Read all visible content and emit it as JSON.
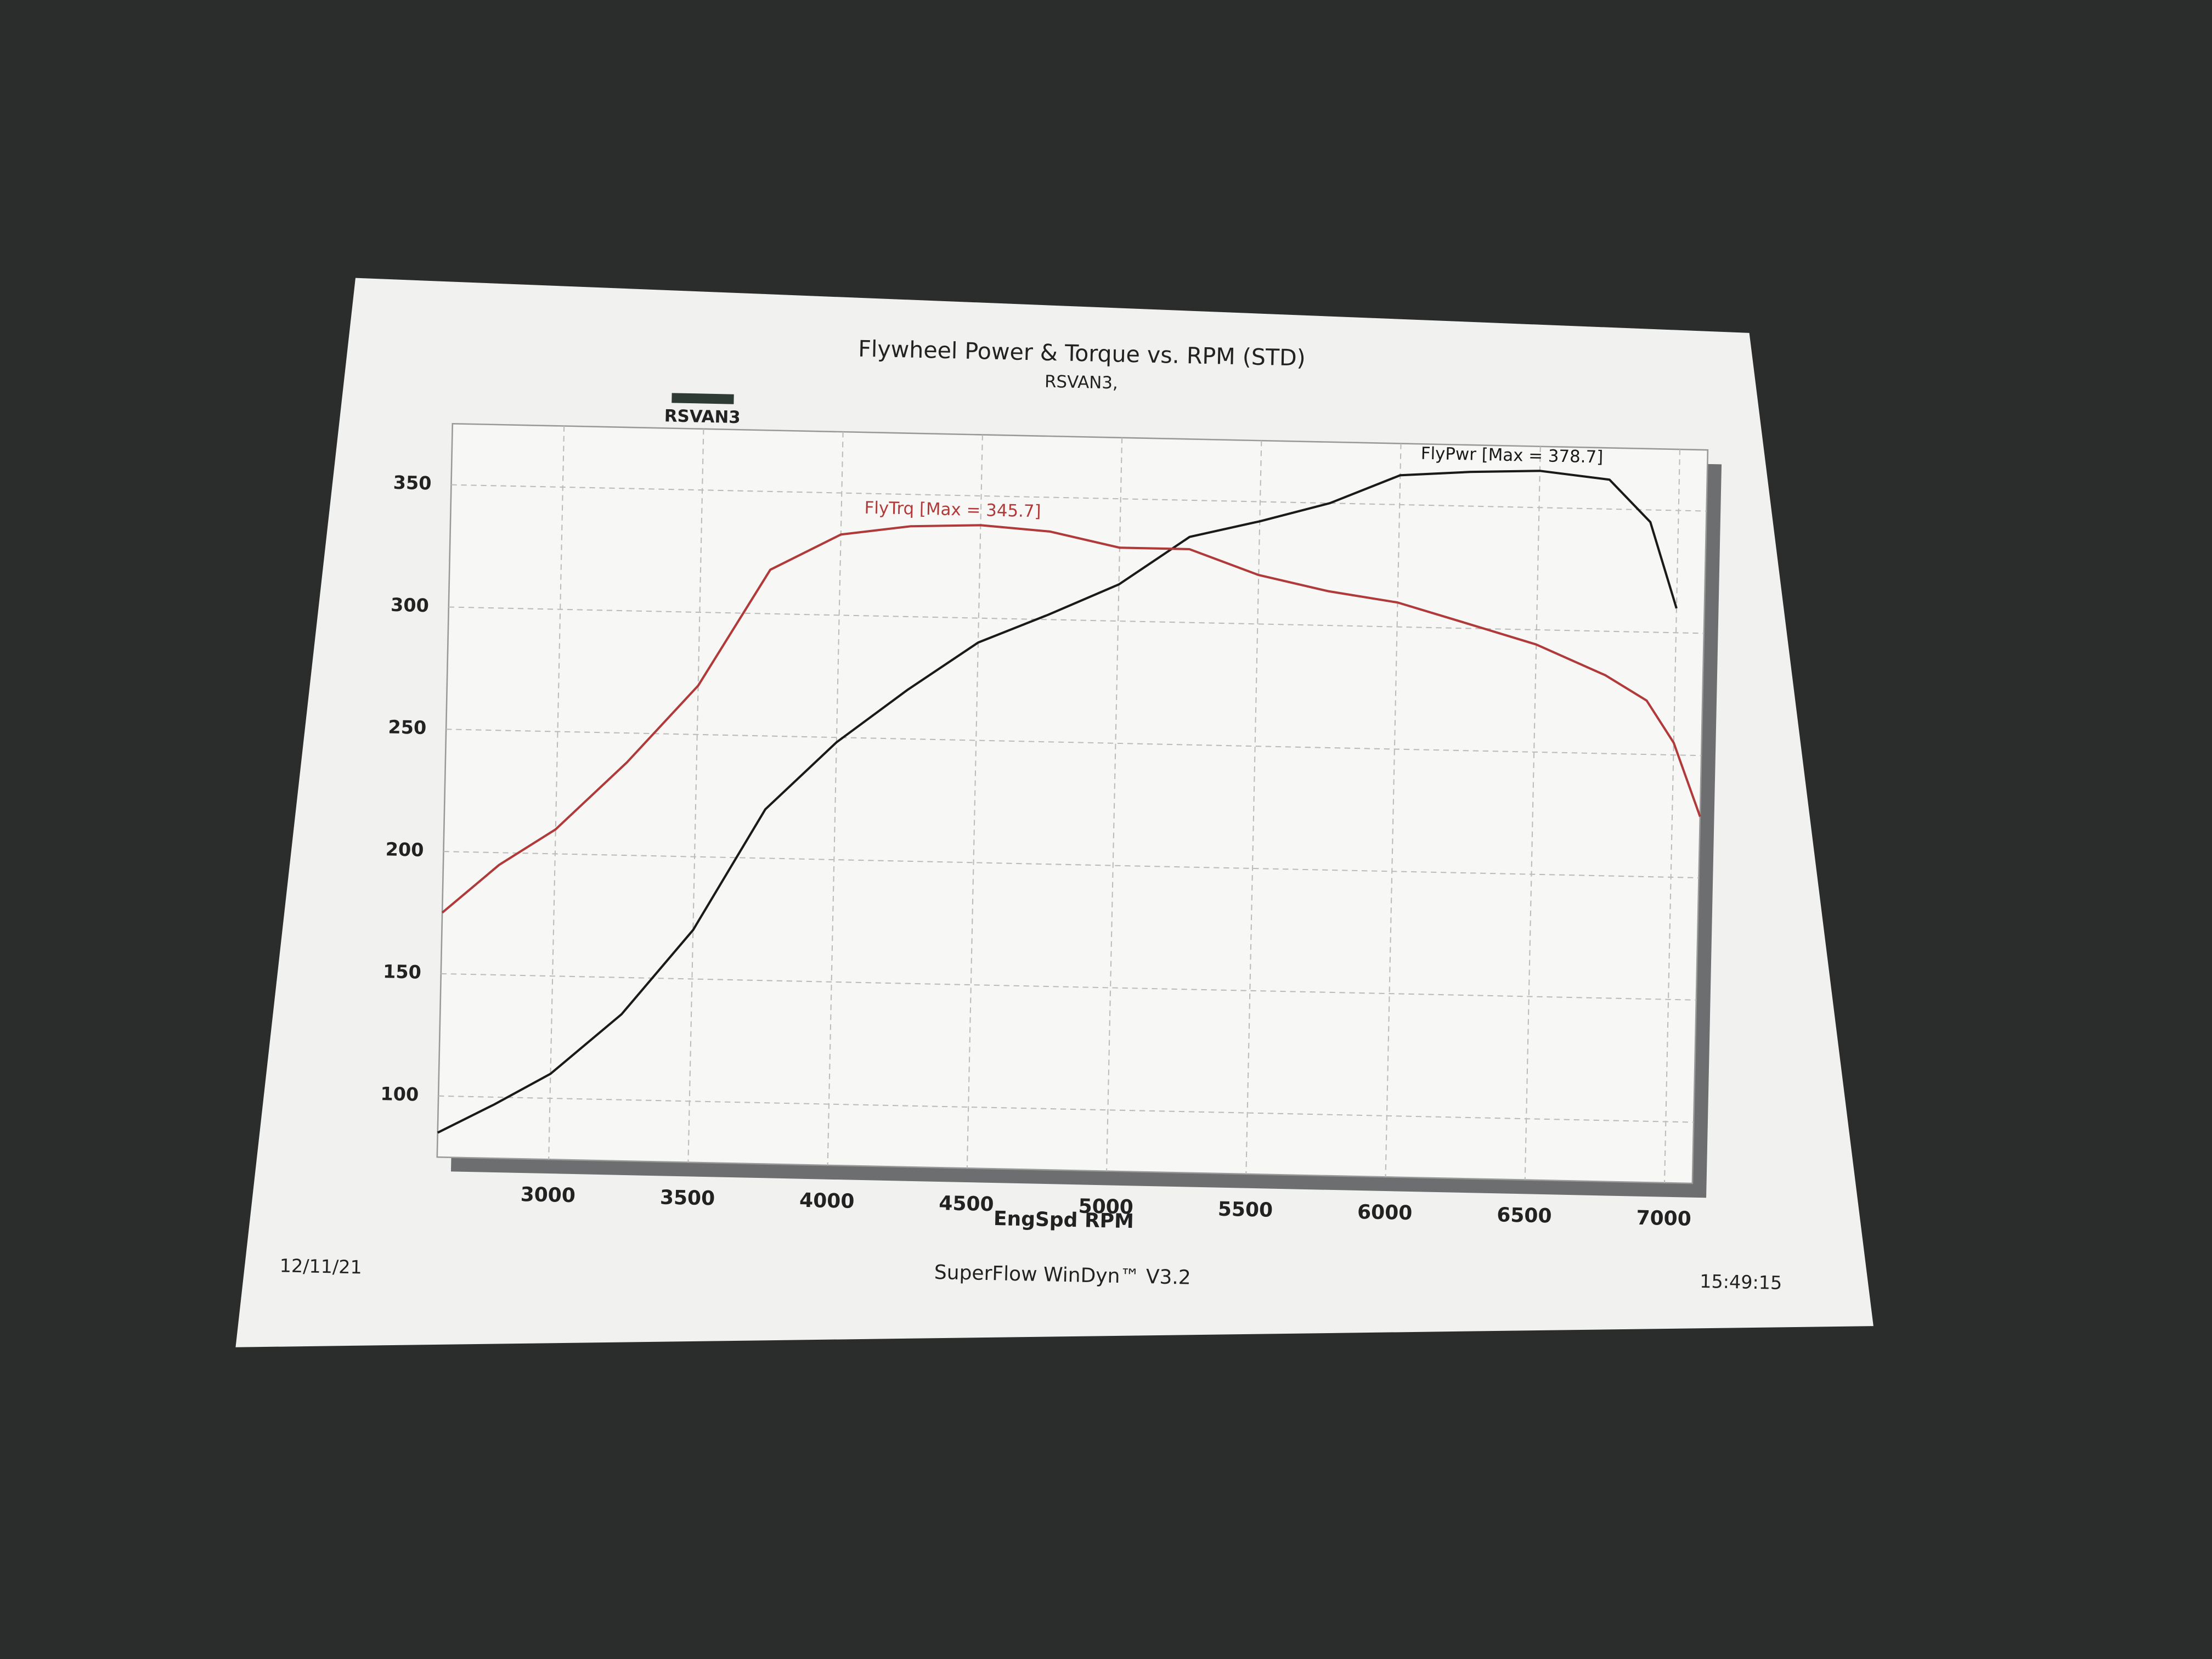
{
  "chart_data": {
    "type": "line",
    "title": "Flywheel Power & Torque vs. RPM (STD)",
    "subtitle": "RSVAN3,",
    "legend_label": "RSVAN3",
    "legend_color": "#2e3a34",
    "x_label": "EngSpd RPM",
    "x": [
      2600,
      2800,
      3000,
      3250,
      3500,
      3750,
      4000,
      4250,
      4500,
      4750,
      5000,
      5250,
      5500,
      5750,
      6000,
      6250,
      6500,
      6750,
      6900,
      7000,
      7100
    ],
    "series": [
      {
        "name": "FlyPwr [Max = 378.7]",
        "color": "#1a1a1a",
        "values": [
          85,
          97,
          110,
          135,
          170,
          220,
          248,
          270,
          290,
          302,
          315,
          335,
          342,
          350,
          362,
          364,
          365,
          362,
          345,
          310,
          null
        ]
      },
      {
        "name": "FlyTrq [Max = 345.7]",
        "color": "#b03a3a",
        "values": [
          175,
          195,
          210,
          238,
          270,
          318,
          333,
          337,
          338,
          336,
          330,
          330,
          320,
          314,
          310,
          302,
          294,
          282,
          272,
          255,
          225
        ]
      }
    ],
    "xlim": [
      2600,
      7100
    ],
    "xticks": [
      3000,
      3500,
      4000,
      4500,
      5000,
      5500,
      6000,
      6500,
      7000
    ],
    "ylim": [
      75,
      375
    ],
    "yticks": [
      100,
      150,
      200,
      250,
      300,
      350
    ],
    "grid": true,
    "footer_left": "12/11/21",
    "footer_center": "SuperFlow WinDyn™ V3.2",
    "footer_right": "15:49:15"
  }
}
